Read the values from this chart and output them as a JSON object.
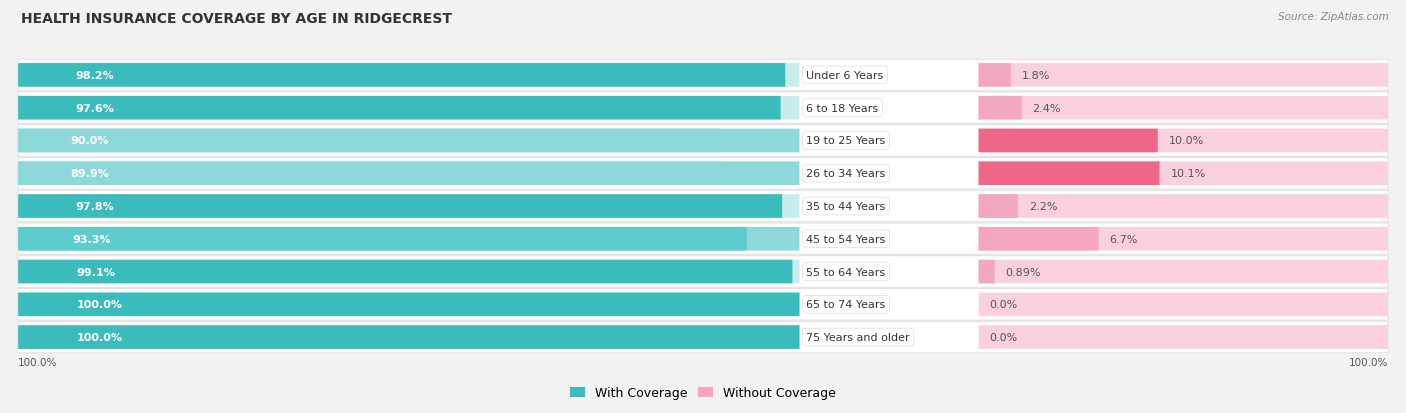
{
  "title": "HEALTH INSURANCE COVERAGE BY AGE IN RIDGECREST",
  "source": "Source: ZipAtlas.com",
  "categories": [
    "Under 6 Years",
    "6 to 18 Years",
    "19 to 25 Years",
    "26 to 34 Years",
    "35 to 44 Years",
    "45 to 54 Years",
    "55 to 64 Years",
    "65 to 74 Years",
    "75 Years and older"
  ],
  "with_coverage": [
    98.2,
    97.6,
    90.0,
    89.9,
    97.8,
    93.3,
    99.1,
    100.0,
    100.0
  ],
  "without_coverage": [
    1.8,
    2.4,
    10.0,
    10.1,
    2.2,
    6.7,
    0.89,
    0.0,
    0.0
  ],
  "with_coverage_labels": [
    "98.2%",
    "97.6%",
    "90.0%",
    "89.9%",
    "97.8%",
    "93.3%",
    "99.1%",
    "100.0%",
    "100.0%"
  ],
  "without_coverage_labels": [
    "1.8%",
    "2.4%",
    "10.0%",
    "10.1%",
    "2.2%",
    "6.7%",
    "0.89%",
    "0.0%",
    "0.0%"
  ],
  "color_teal_dark": "#3BBCBC",
  "color_teal_light": "#8DD8D8",
  "color_pink_dark": "#EE6688",
  "color_pink_light": "#F4A8C0",
  "color_pink_pale": "#FAD0DE",
  "row_bg": "#FFFFFF",
  "row_border": "#DDDDDD",
  "fig_bg": "#F2F2F2",
  "label_bg": "#FFFFFF",
  "title_fontsize": 10,
  "label_fontsize": 8,
  "cat_fontsize": 8,
  "source_fontsize": 7.5
}
